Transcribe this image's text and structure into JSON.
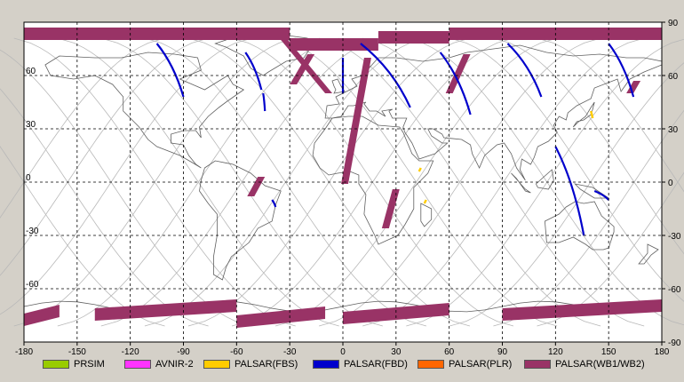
{
  "map": {
    "lon_ticks": [
      "-180",
      "-150",
      "-120",
      "-90",
      "-60",
      "-30",
      "0",
      "30",
      "60",
      "90",
      "120",
      "150",
      "180"
    ],
    "lat_ticks_right": [
      "90",
      "60",
      "30",
      "0",
      "-30",
      "-60",
      "-90"
    ],
    "lat_ticks_left": [
      "60",
      "30",
      "0",
      "-30",
      "-60"
    ],
    "colors": {
      "ocean": "#ffffff",
      "frame": "#d4d0c8",
      "grid": "#000000",
      "orbit": "#b8b8b8",
      "coast": "#606060"
    }
  },
  "legend": [
    {
      "label": "PRSIM",
      "color": "#99cc00"
    },
    {
      "label": "AVNIR-2",
      "color": "#ff33ff"
    },
    {
      "label": "PALSAR(FBS)",
      "color": "#ffcc00"
    },
    {
      "label": "PALSAR(FBD)",
      "color": "#0000cc"
    },
    {
      "label": "PALSAR(PLR)",
      "color": "#ff6600"
    },
    {
      "label": "PALSAR(WB1/WB2)",
      "color": "#993366"
    }
  ]
}
